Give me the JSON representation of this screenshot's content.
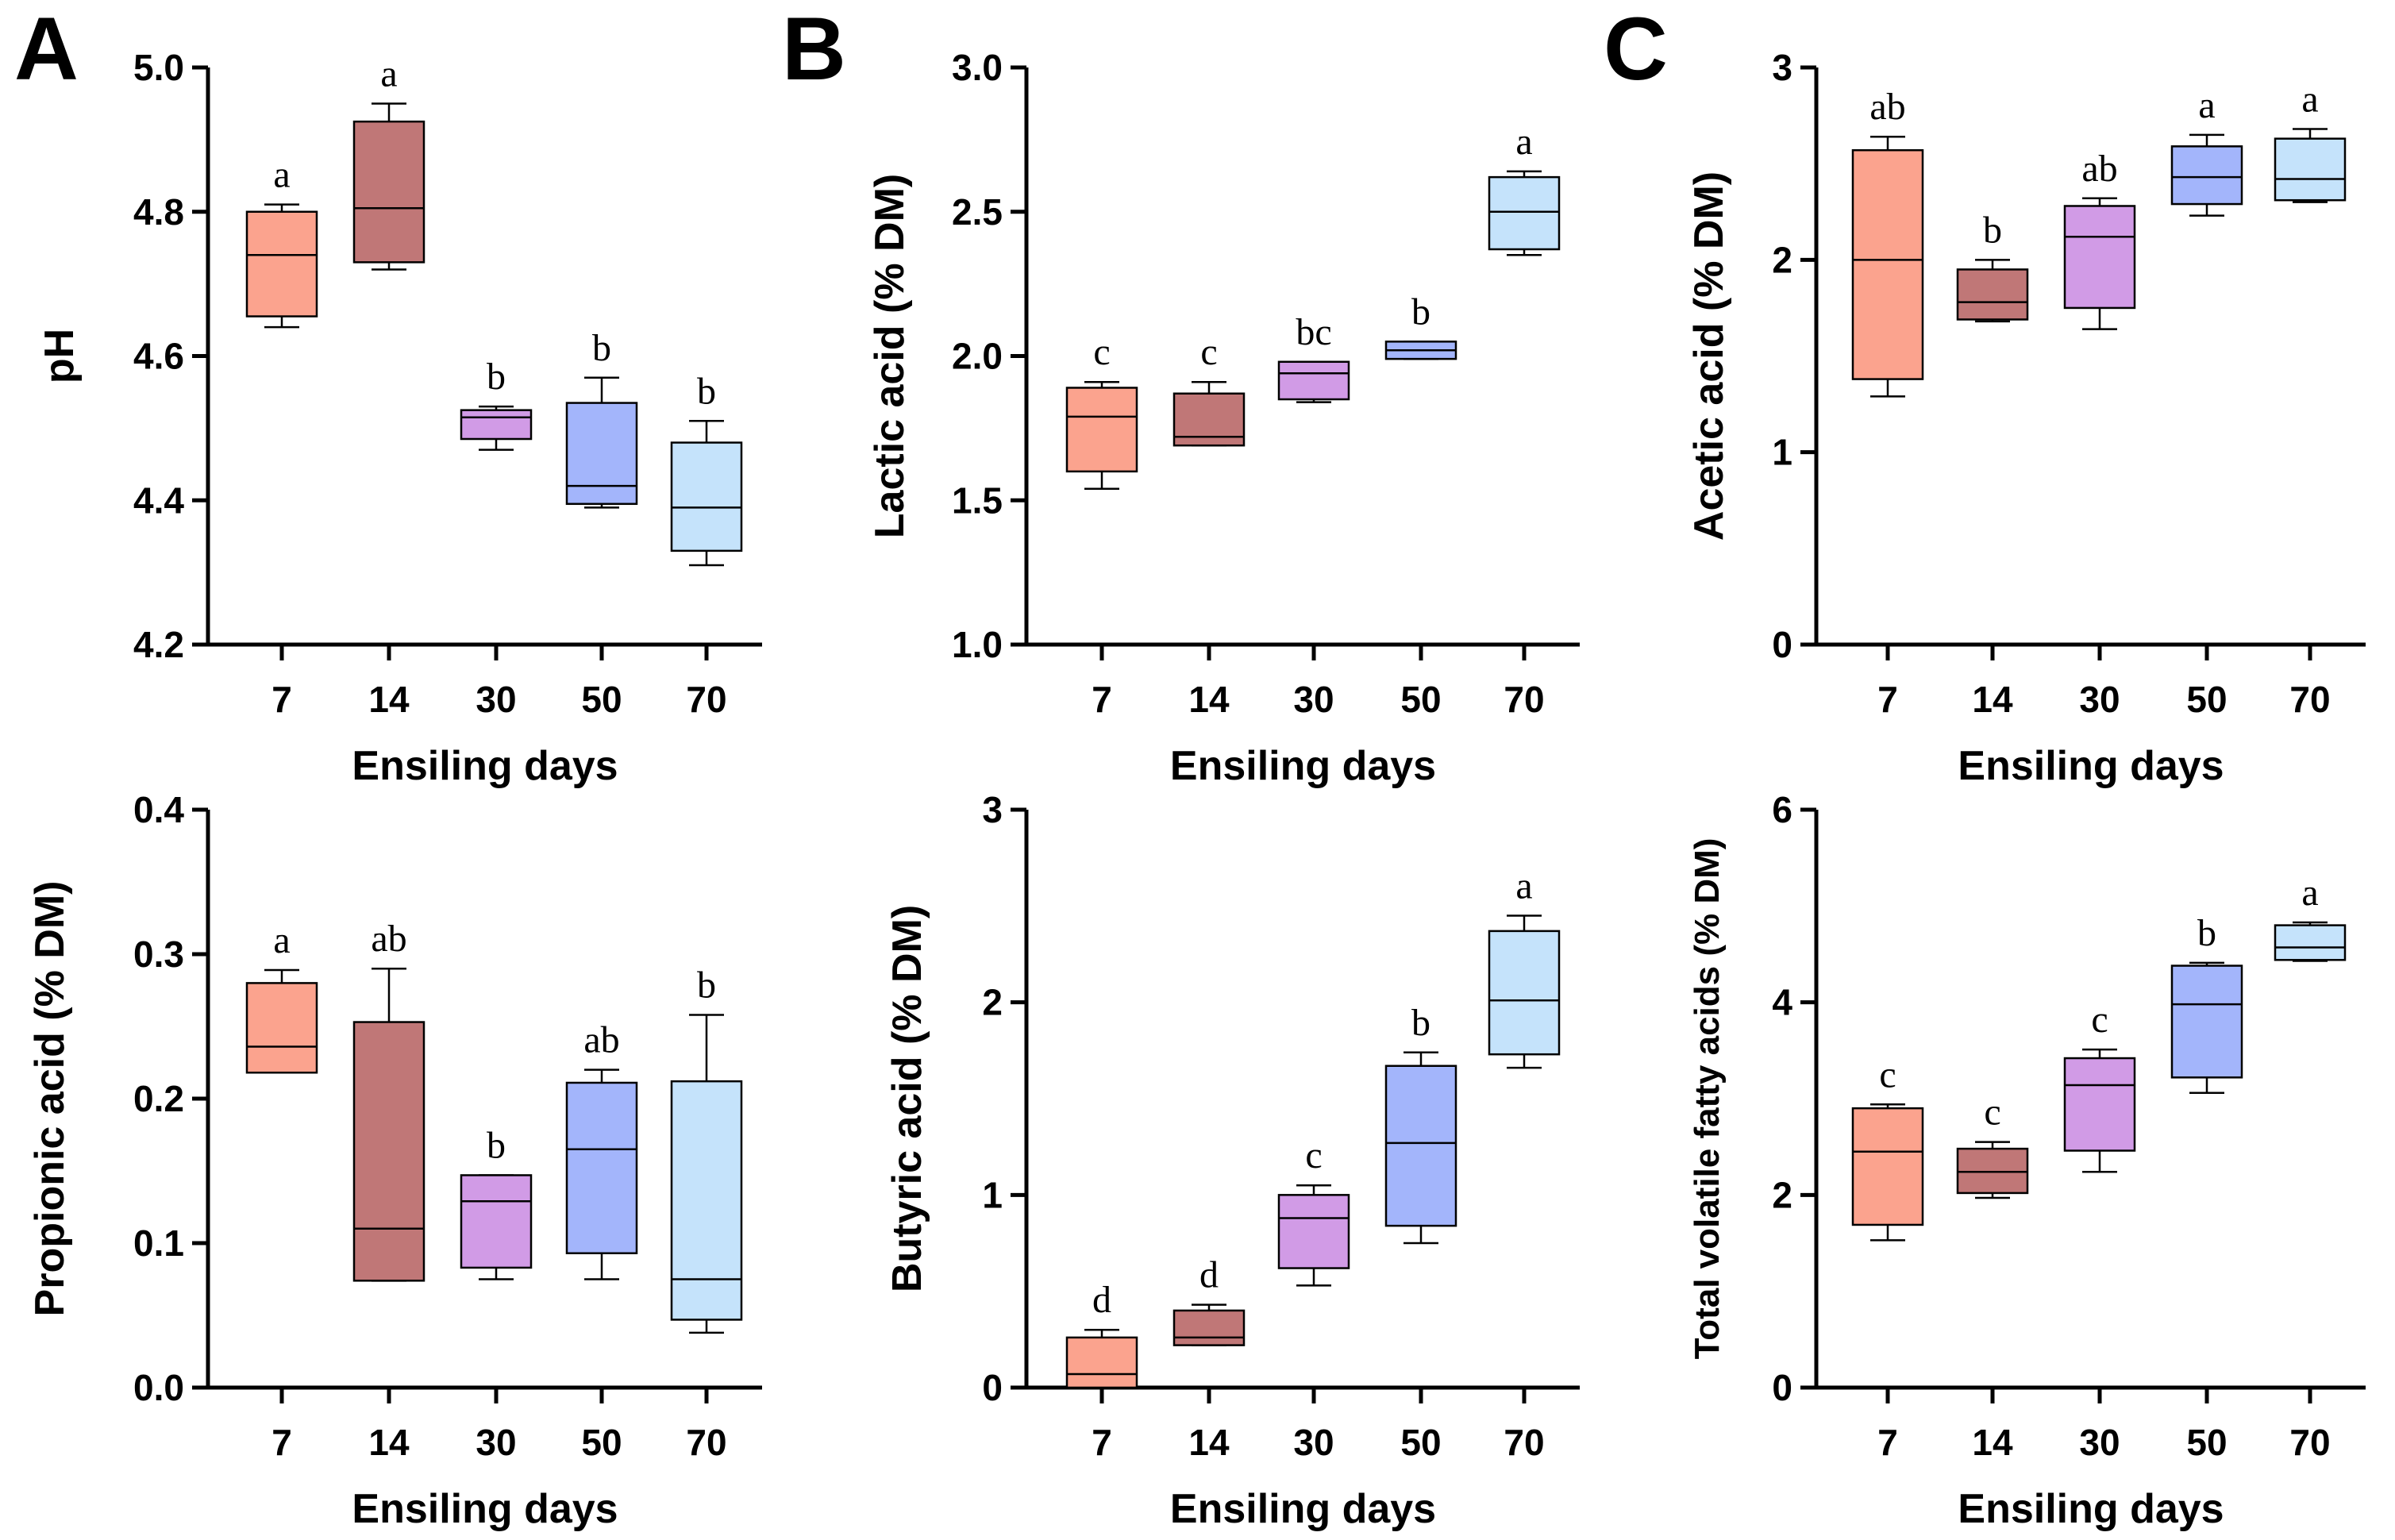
{
  "colors": [
    "#FBA38E",
    "#C07777",
    "#D19BE6",
    "#A3B5FB",
    "#C5E3FB"
  ],
  "panel_letters": [
    "A",
    "B",
    "C"
  ],
  "chart_data": [
    {
      "id": "ph",
      "type": "boxplot",
      "title": "",
      "xlabel": "Ensiling days",
      "ylabel": "pH",
      "categories": [
        "7",
        "14",
        "30",
        "50",
        "70"
      ],
      "ylim": [
        4.2,
        5.0
      ],
      "yticks": [
        "4.2",
        "4.4",
        "4.6",
        "4.8",
        "5.0"
      ],
      "boxes": [
        {
          "min": 4.64,
          "q1": 4.655,
          "median": 4.74,
          "q3": 4.8,
          "max": 4.81,
          "sig": "a"
        },
        {
          "min": 4.72,
          "q1": 4.73,
          "median": 4.805,
          "q3": 4.925,
          "max": 4.95,
          "sig": "a"
        },
        {
          "min": 4.47,
          "q1": 4.485,
          "median": 4.515,
          "q3": 4.525,
          "max": 4.53,
          "sig": "b"
        },
        {
          "min": 4.39,
          "q1": 4.395,
          "median": 4.42,
          "q3": 4.535,
          "max": 4.57,
          "sig": "b"
        },
        {
          "min": 4.31,
          "q1": 4.33,
          "median": 4.39,
          "q3": 4.48,
          "max": 4.51,
          "sig": "b"
        }
      ]
    },
    {
      "id": "lactic",
      "type": "boxplot",
      "title": "",
      "xlabel": "Ensiling days",
      "ylabel": "Lactic acid (% DM)",
      "categories": [
        "7",
        "14",
        "30",
        "50",
        "70"
      ],
      "ylim": [
        1.0,
        3.0
      ],
      "yticks": [
        "1.0",
        "1.5",
        "2.0",
        "2.5",
        "3.0"
      ],
      "boxes": [
        {
          "min": 1.54,
          "q1": 1.6,
          "median": 1.79,
          "q3": 1.89,
          "max": 1.91,
          "sig": "c"
        },
        {
          "min": 1.69,
          "q1": 1.69,
          "median": 1.72,
          "q3": 1.87,
          "max": 1.91,
          "sig": "c"
        },
        {
          "min": 1.84,
          "q1": 1.85,
          "median": 1.94,
          "q3": 1.98,
          "max": 1.98,
          "sig": "bc"
        },
        {
          "min": 1.99,
          "q1": 1.99,
          "median": 2.02,
          "q3": 2.05,
          "max": 2.05,
          "sig": "b"
        },
        {
          "min": 2.35,
          "q1": 2.37,
          "median": 2.5,
          "q3": 2.62,
          "max": 2.64,
          "sig": "a"
        }
      ]
    },
    {
      "id": "acetic",
      "type": "boxplot",
      "title": "",
      "xlabel": "Ensiling days",
      "ylabel": "Acetic acid (% DM)",
      "categories": [
        "7",
        "14",
        "30",
        "50",
        "70"
      ],
      "ylim": [
        0,
        3
      ],
      "yticks": [
        "0",
        "1",
        "2",
        "3"
      ],
      "boxes": [
        {
          "min": 1.29,
          "q1": 1.38,
          "median": 2.0,
          "q3": 2.57,
          "max": 2.64,
          "sig": "ab"
        },
        {
          "min": 1.68,
          "q1": 1.69,
          "median": 1.78,
          "q3": 1.95,
          "max": 2.0,
          "sig": "b"
        },
        {
          "min": 1.64,
          "q1": 1.75,
          "median": 2.12,
          "q3": 2.28,
          "max": 2.32,
          "sig": "ab"
        },
        {
          "min": 2.23,
          "q1": 2.29,
          "median": 2.43,
          "q3": 2.59,
          "max": 2.65,
          "sig": "a"
        },
        {
          "min": 2.3,
          "q1": 2.31,
          "median": 2.42,
          "q3": 2.63,
          "max": 2.68,
          "sig": "a"
        }
      ]
    },
    {
      "id": "propionic",
      "type": "boxplot",
      "title": "",
      "xlabel": "Ensiling days",
      "ylabel": "Propionic acid (% DM)",
      "categories": [
        "7",
        "14",
        "30",
        "50",
        "70"
      ],
      "ylim": [
        0.0,
        0.4
      ],
      "yticks": [
        "0.0",
        "0.1",
        "0.2",
        "0.3",
        "0.4"
      ],
      "boxes": [
        {
          "min": 0.218,
          "q1": 0.218,
          "median": 0.236,
          "q3": 0.28,
          "max": 0.289,
          "sig": "a"
        },
        {
          "min": 0.074,
          "q1": 0.074,
          "median": 0.11,
          "q3": 0.253,
          "max": 0.29,
          "sig": "ab"
        },
        {
          "min": 0.075,
          "q1": 0.083,
          "median": 0.129,
          "q3": 0.147,
          "max": 0.147,
          "sig": "b"
        },
        {
          "min": 0.075,
          "q1": 0.093,
          "median": 0.165,
          "q3": 0.211,
          "max": 0.22,
          "sig": "ab"
        },
        {
          "min": 0.038,
          "q1": 0.047,
          "median": 0.075,
          "q3": 0.212,
          "max": 0.258,
          "sig": "b"
        }
      ]
    },
    {
      "id": "butyric",
      "type": "boxplot",
      "title": "",
      "xlabel": "Ensiling days",
      "ylabel": "Butyric acid (% DM)",
      "categories": [
        "7",
        "14",
        "30",
        "50",
        "70"
      ],
      "ylim": [
        0,
        3
      ],
      "yticks": [
        "0",
        "1",
        "2",
        "3"
      ],
      "boxes": [
        {
          "min": 0.0,
          "q1": 0.0,
          "median": 0.07,
          "q3": 0.26,
          "max": 0.3,
          "sig": "d"
        },
        {
          "min": 0.22,
          "q1": 0.22,
          "median": 0.26,
          "q3": 0.4,
          "max": 0.43,
          "sig": "d"
        },
        {
          "min": 0.53,
          "q1": 0.62,
          "median": 0.88,
          "q3": 1.0,
          "max": 1.05,
          "sig": "c"
        },
        {
          "min": 0.75,
          "q1": 0.84,
          "median": 1.27,
          "q3": 1.67,
          "max": 1.74,
          "sig": "b"
        },
        {
          "min": 1.66,
          "q1": 1.73,
          "median": 2.01,
          "q3": 2.37,
          "max": 2.45,
          "sig": "a"
        }
      ]
    },
    {
      "id": "tvfa",
      "type": "boxplot",
      "title": "",
      "xlabel": "Ensiling days",
      "ylabel": "Total volatile fatty acids (% DM)",
      "categories": [
        "7",
        "14",
        "30",
        "50",
        "70"
      ],
      "ylim": [
        0,
        6
      ],
      "yticks": [
        "0",
        "2",
        "4",
        "6"
      ],
      "boxes": [
        {
          "min": 1.53,
          "q1": 1.69,
          "median": 2.45,
          "q3": 2.9,
          "max": 2.94,
          "sig": "c"
        },
        {
          "min": 1.97,
          "q1": 2.02,
          "median": 2.24,
          "q3": 2.48,
          "max": 2.55,
          "sig": "c"
        },
        {
          "min": 2.24,
          "q1": 2.46,
          "median": 3.14,
          "q3": 3.42,
          "max": 3.51,
          "sig": "c"
        },
        {
          "min": 3.06,
          "q1": 3.22,
          "median": 3.98,
          "q3": 4.38,
          "max": 4.41,
          "sig": "b"
        },
        {
          "min": 4.43,
          "q1": 4.44,
          "median": 4.57,
          "q3": 4.8,
          "max": 4.83,
          "sig": "a"
        }
      ]
    }
  ]
}
